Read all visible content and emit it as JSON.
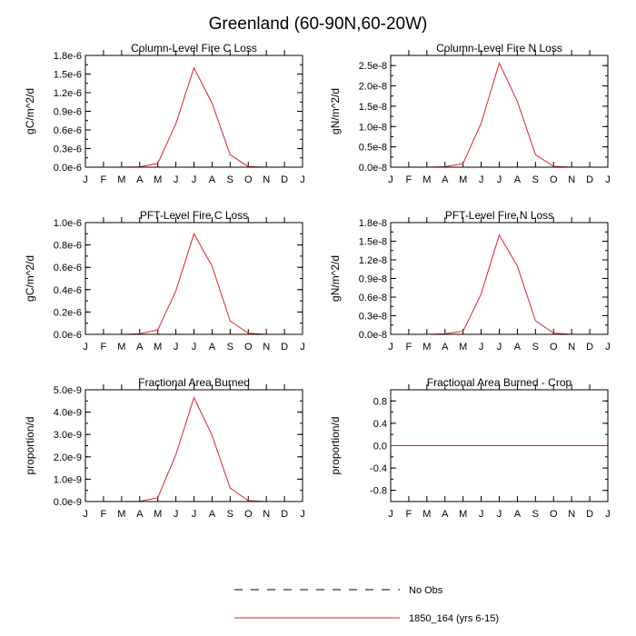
{
  "figure_title": "Greenland (60-90N,60-20W)",
  "legend": {
    "items": [
      {
        "label": "No Obs",
        "style": "dashed",
        "color": "#000000"
      },
      {
        "label": "1850_164 (yrs 6-15)",
        "style": "solid",
        "color": "#e0202a"
      }
    ]
  },
  "chart_data": [
    {
      "type": "line",
      "title": "Column-Level Fire C Loss",
      "ylabel": "gC/m^2/d",
      "categories": [
        "J",
        "F",
        "M",
        "A",
        "M",
        "J",
        "J",
        "A",
        "S",
        "O",
        "N",
        "D",
        "J"
      ],
      "ylim": [
        0,
        1.8e-06
      ],
      "yticks": [
        0,
        3e-07,
        6e-07,
        9e-07,
        1.2e-06,
        1.5e-06,
        1.8e-06
      ],
      "yticklabels": [
        "0.0e-6",
        "0.3e-6",
        "0.6e-6",
        "0.9e-6",
        "1.2e-6",
        "1.5e-6",
        "1.8e-6"
      ],
      "yminor_per_major": 2,
      "series": [
        {
          "name": "1850_164 (yrs 6-15)",
          "color": "#e0202a",
          "values": [
            0,
            0,
            0,
            5e-09,
            6e-08,
            7e-07,
            1.6e-06,
            1.03e-06,
            2e-07,
            1e-08,
            0,
            0,
            0
          ]
        }
      ]
    },
    {
      "type": "line",
      "title": "Column-Level Fire N Loss",
      "ylabel": "gN/m^2/d",
      "categories": [
        "J",
        "F",
        "M",
        "A",
        "M",
        "J",
        "J",
        "A",
        "S",
        "O",
        "N",
        "D",
        "J"
      ],
      "ylim": [
        0,
        2.75e-08
      ],
      "yticks": [
        0,
        5e-09,
        1e-08,
        1.5e-08,
        2e-08,
        2.5e-08
      ],
      "yticklabels": [
        "0.0e-8",
        "0.5e-8",
        "1.0e-8",
        "1.5e-8",
        "2.0e-8",
        "2.5e-8"
      ],
      "yminor_per_major": 2,
      "series": [
        {
          "name": "1850_164 (yrs 6-15)",
          "color": "#e0202a",
          "values": [
            0,
            0,
            0,
            1e-10,
            9e-10,
            1.08e-08,
            2.56e-08,
            1.62e-08,
            3.1e-09,
            2e-10,
            0,
            0,
            0
          ]
        }
      ]
    },
    {
      "type": "line",
      "title": "PFT-Level Fire C Loss",
      "ylabel": "gC/m^2/d",
      "categories": [
        "J",
        "F",
        "M",
        "A",
        "M",
        "J",
        "J",
        "A",
        "S",
        "O",
        "N",
        "D",
        "J"
      ],
      "ylim": [
        0,
        1e-06
      ],
      "yticks": [
        0,
        2e-07,
        4e-07,
        6e-07,
        8e-07,
        1e-06
      ],
      "yticklabels": [
        "0.0e-6",
        "0.2e-6",
        "0.4e-6",
        "0.6e-6",
        "0.8e-6",
        "1.0e-6"
      ],
      "yminor_per_major": 2,
      "series": [
        {
          "name": "1850_164 (yrs 6-15)",
          "color": "#e0202a",
          "values": [
            0,
            0,
            0,
            5e-09,
            4e-08,
            3.9e-07,
            9e-07,
            6.1e-07,
            1.2e-07,
            1e-08,
            0,
            0,
            0
          ]
        }
      ]
    },
    {
      "type": "line",
      "title": "PFT-Level Fire N Loss",
      "ylabel": "gN/m^2/d",
      "categories": [
        "J",
        "F",
        "M",
        "A",
        "M",
        "J",
        "J",
        "A",
        "S",
        "O",
        "N",
        "D",
        "J"
      ],
      "ylim": [
        0,
        1.8e-08
      ],
      "yticks": [
        0,
        3e-09,
        6e-09,
        9e-09,
        1.2e-08,
        1.5e-08,
        1.8e-08
      ],
      "yticklabels": [
        "0.0e-8",
        "0.3e-8",
        "0.6e-8",
        "0.9e-8",
        "1.2e-8",
        "1.5e-8",
        "1.8e-8"
      ],
      "yminor_per_major": 2,
      "series": [
        {
          "name": "1850_164 (yrs 6-15)",
          "color": "#e0202a",
          "values": [
            0,
            0,
            0,
            1e-10,
            5e-10,
            6.5e-09,
            1.6e-08,
            1.1e-08,
            2.2e-09,
            2e-10,
            0,
            0,
            0
          ]
        }
      ]
    },
    {
      "type": "line",
      "title": "Fractional Area Burned",
      "ylabel": "proportion/d",
      "categories": [
        "J",
        "F",
        "M",
        "A",
        "M",
        "J",
        "J",
        "A",
        "S",
        "O",
        "N",
        "D",
        "J"
      ],
      "ylim": [
        0,
        5e-09
      ],
      "yticks": [
        0,
        1e-09,
        2e-09,
        3e-09,
        4e-09,
        5e-09
      ],
      "yticklabels": [
        "0.0e-9",
        "1.0e-9",
        "2.0e-9",
        "3.0e-9",
        "4.0e-9",
        "5.0e-9"
      ],
      "yminor_per_major": 2,
      "series": [
        {
          "name": "1850_164 (yrs 6-15)",
          "color": "#e0202a",
          "values": [
            0,
            0,
            0,
            1e-11,
            1.7e-10,
            2.1e-09,
            4.65e-09,
            2.96e-09,
            6e-10,
            4e-11,
            0,
            0,
            0
          ]
        }
      ]
    },
    {
      "type": "line",
      "title": "Fractional Area Burned - Crop",
      "ylabel": "proportion/d",
      "categories": [
        "J",
        "F",
        "M",
        "A",
        "M",
        "J",
        "J",
        "A",
        "S",
        "O",
        "N",
        "D",
        "J"
      ],
      "ylim": [
        -1.0,
        1.0
      ],
      "yticks": [
        -0.8,
        -0.4,
        0,
        0.4,
        0.8
      ],
      "yticklabels": [
        "-0.8",
        "-0.4",
        "0.0",
        "0.4",
        "0.8"
      ],
      "yminor_per_major": 2,
      "series": [
        {
          "name": "1850_164 (yrs 6-15)",
          "color": "#e0202a",
          "values": [
            0,
            0,
            0,
            0,
            0,
            0,
            0,
            0,
            0,
            0,
            0,
            0,
            0
          ]
        }
      ]
    }
  ]
}
